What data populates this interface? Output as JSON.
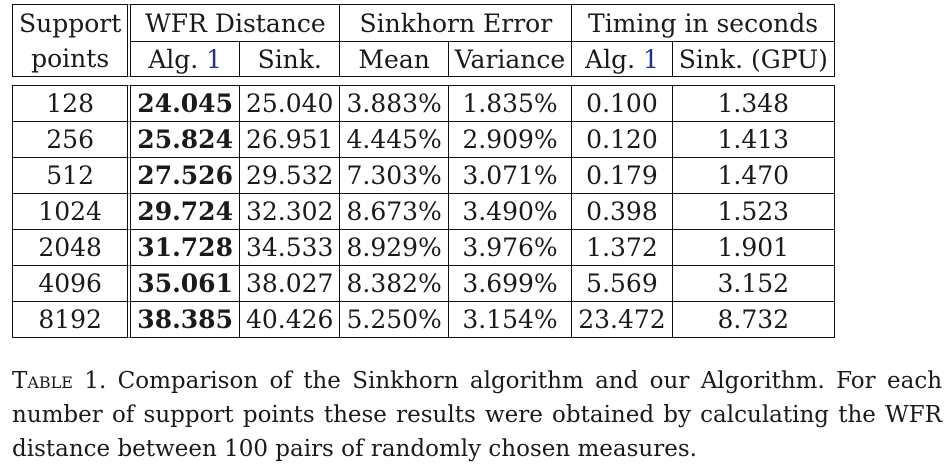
{
  "table": {
    "headers": {
      "support_points": [
        "Support",
        "points"
      ],
      "wfr_distance": "WFR Distance",
      "sinkhorn_error": "Sinkhorn Error",
      "timing": "Timing in seconds",
      "sub": {
        "alg_prefix": "Alg.",
        "alg_ref": "1",
        "sink": "Sink.",
        "mean": "Mean",
        "variance": "Variance",
        "time_alg_prefix": "Alg.",
        "time_alg_ref": "1",
        "time_sink": "Sink. (GPU)"
      }
    },
    "rows": [
      {
        "points": "128",
        "alg": "24.045",
        "sink": "25.040",
        "mean": "3.883%",
        "variance": "1.835%",
        "t_alg": "0.100",
        "t_sink": "1.348"
      },
      {
        "points": "256",
        "alg": "25.824",
        "sink": "26.951",
        "mean": "4.445%",
        "variance": "2.909%",
        "t_alg": "0.120",
        "t_sink": "1.413"
      },
      {
        "points": "512",
        "alg": "27.526",
        "sink": "29.532",
        "mean": "7.303%",
        "variance": "3.071%",
        "t_alg": "0.179",
        "t_sink": "1.470"
      },
      {
        "points": "1024",
        "alg": "29.724",
        "sink": "32.302",
        "mean": "8.673%",
        "variance": "3.490%",
        "t_alg": "0.398",
        "t_sink": "1.523"
      },
      {
        "points": "2048",
        "alg": "31.728",
        "sink": "34.533",
        "mean": "8.929%",
        "variance": "3.976%",
        "t_alg": "1.372",
        "t_sink": "1.901"
      },
      {
        "points": "4096",
        "alg": "35.061",
        "sink": "38.027",
        "mean": "8.382%",
        "variance": "3.699%",
        "t_alg": "5.569",
        "t_sink": "3.152"
      },
      {
        "points": "8192",
        "alg": "38.385",
        "sink": "40.426",
        "mean": "5.250%",
        "variance": "3.154%",
        "t_alg": "23.472",
        "t_sink": "8.732"
      }
    ]
  },
  "caption": {
    "label": "Table 1.",
    "text": "Comparison of the Sinkhorn algorithm and our Algorithm. For each number of support points these  results were obtained by calculating the WFR distance between 100 pairs of randomly chosen measures."
  },
  "colors": {
    "reference_link": "#1f2f8f",
    "text": "#1a1a1a"
  }
}
